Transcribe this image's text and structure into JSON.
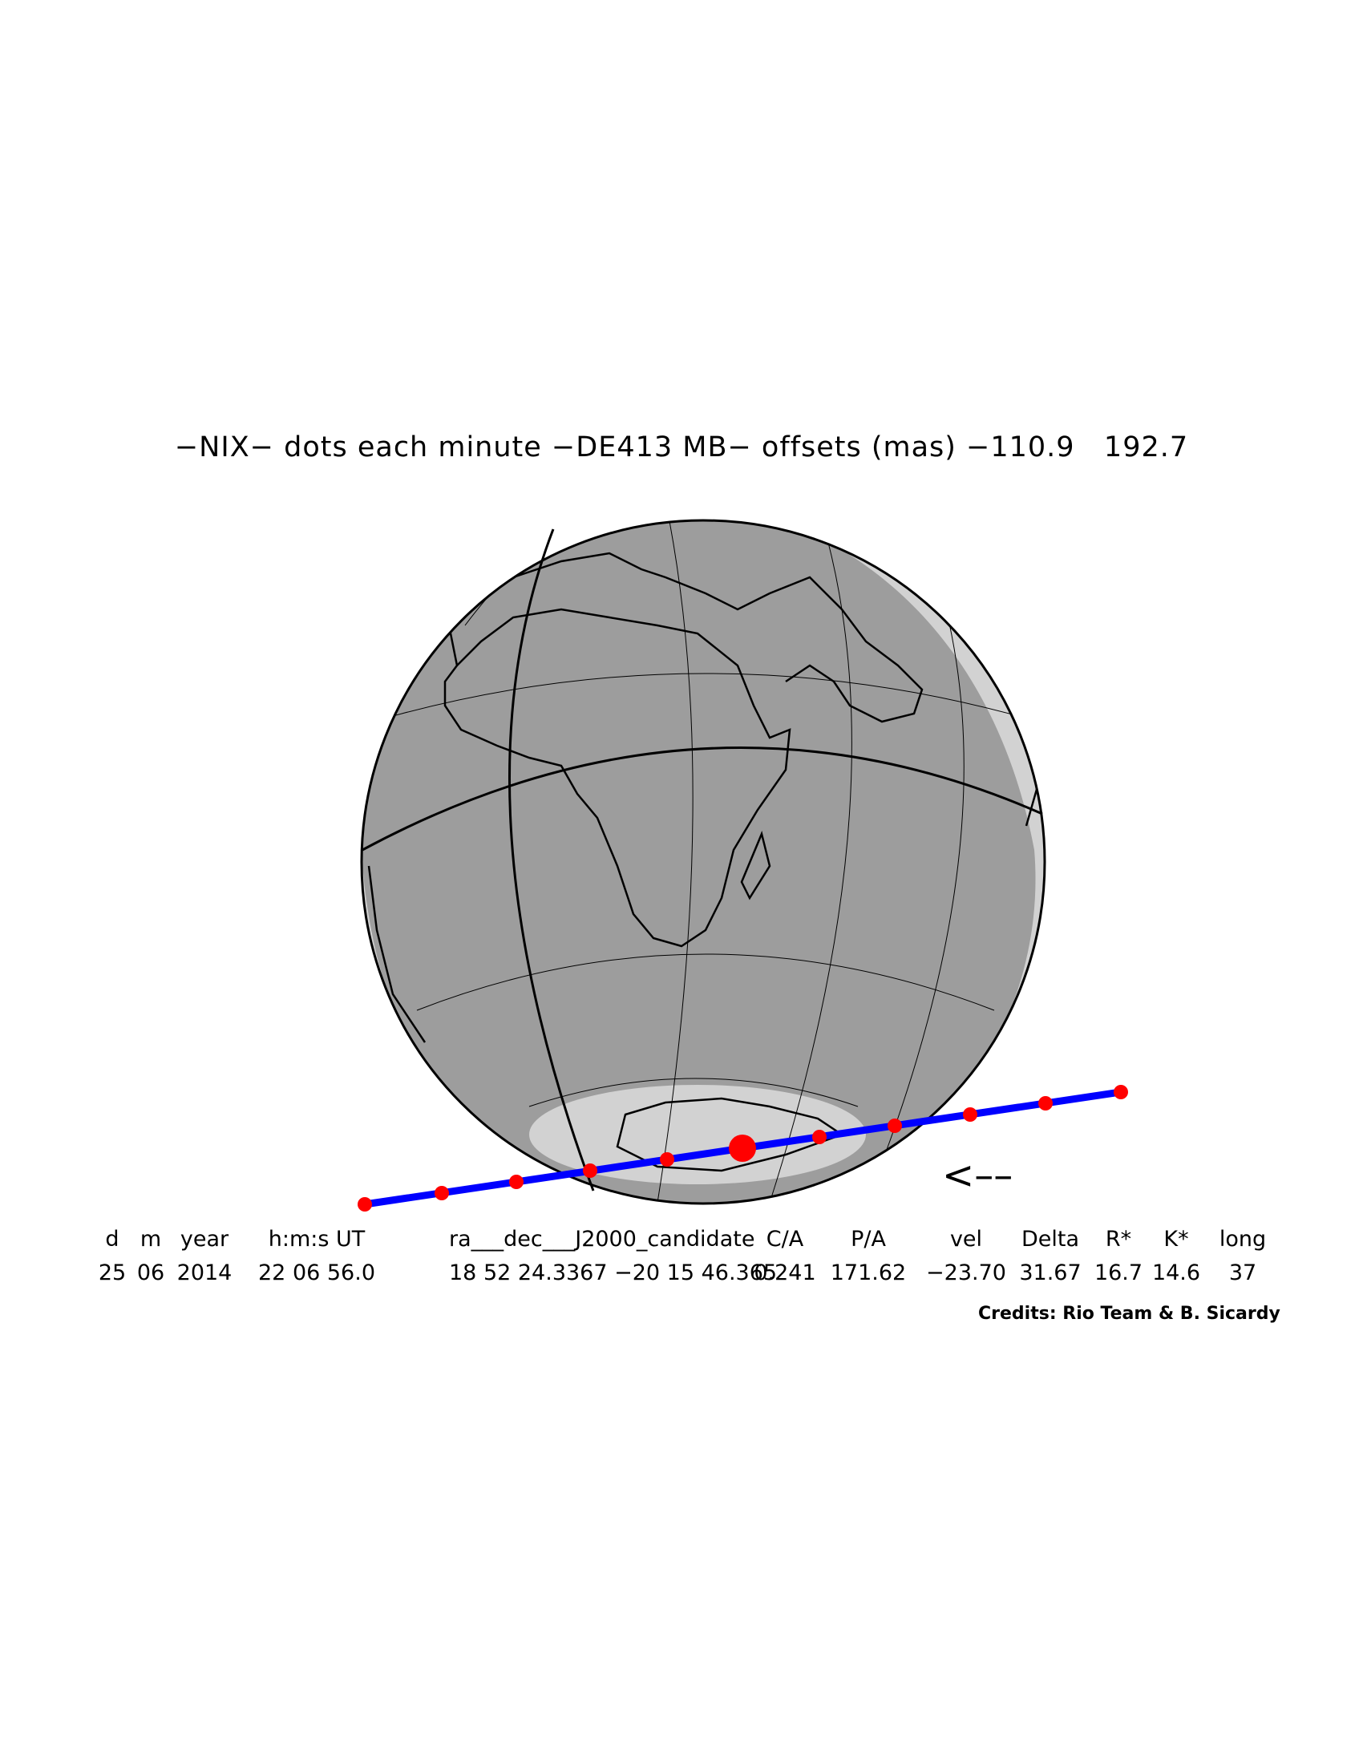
{
  "title": "−NIX− dots each minute −DE413 MB− offsets (mas) −110.9   192.7",
  "map": {
    "projection": "orthographic",
    "ocean_color": "#9d9d9d",
    "landmask_edge_color": "#d2d2d2",
    "coastline_color": "#000000",
    "track_color": "#0000ff",
    "minute_dot_color": "#ff0000",
    "direction_indicator": "<––"
  },
  "table": {
    "headers": [
      "d",
      "m",
      "year",
      "h:m:s UT",
      "ra___dec___J2000_candidate",
      "C/A",
      "P/A",
      "vel",
      "Delta",
      "R*",
      "K*",
      "long"
    ],
    "values": [
      "25",
      "06",
      "2014",
      "22 06 56.0",
      "18 52 24.3367 −20 15 46.365",
      "0.241",
      "171.62",
      "−23.70",
      "31.67",
      "16.7",
      "14.6",
      "37"
    ]
  },
  "credits": "Credits: Rio Team & B. Sicardy"
}
